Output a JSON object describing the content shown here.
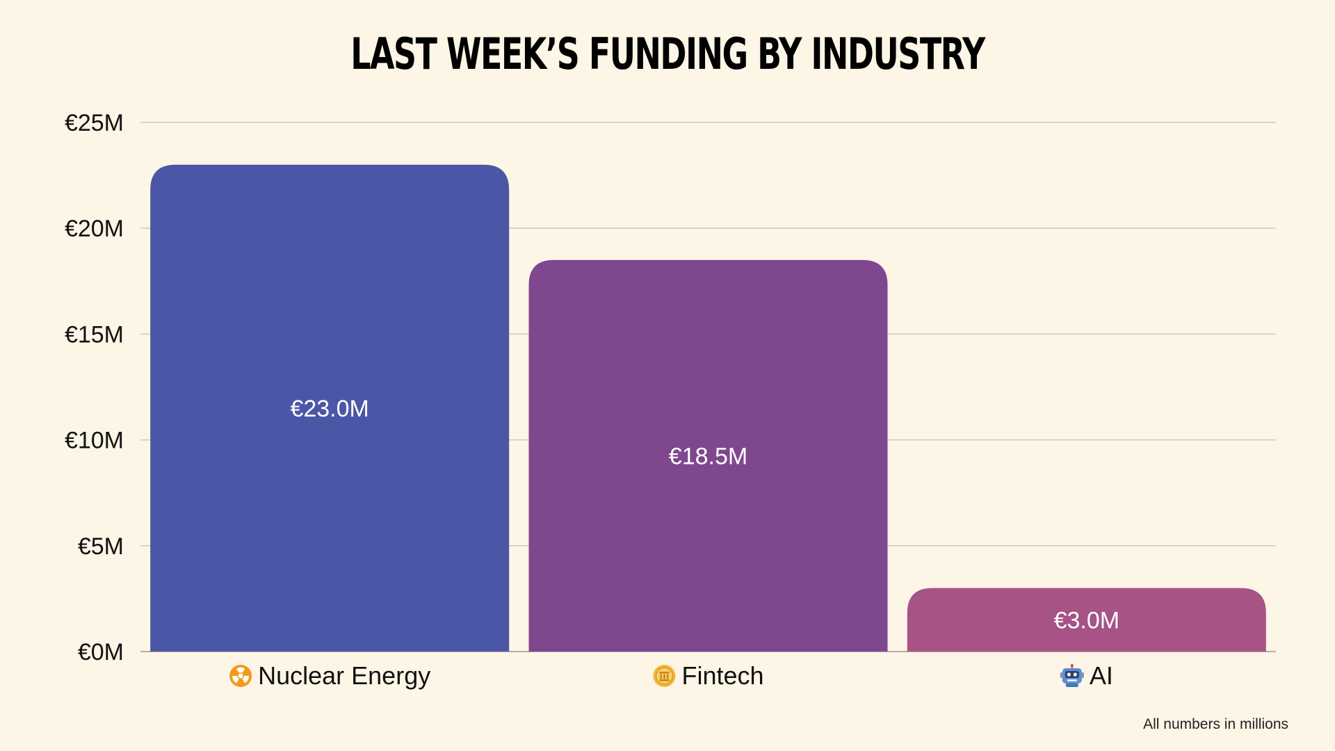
{
  "chart_data": {
    "type": "bar",
    "title": "Last Week’s Funding by Industry",
    "categories": [
      "Nuclear Energy",
      "Fintech",
      "AI"
    ],
    "category_icons": [
      "radioactive-icon",
      "coin-icon",
      "robot-icon"
    ],
    "values": [
      23.0,
      18.5,
      3.0
    ],
    "value_labels": [
      "€23.0M",
      "€18.5M",
      "€3.0M"
    ],
    "colors": [
      "#4b57a6",
      "#7f478e",
      "#a75386"
    ],
    "ylim": [
      0,
      25
    ],
    "yticks": [
      0,
      5,
      10,
      15,
      20,
      25
    ],
    "ytick_labels": [
      "€0M",
      "€5M",
      "€10M",
      "€15M",
      "€20M",
      "€25M"
    ],
    "xlabel": "",
    "ylabel": "",
    "grid": true,
    "legend": false
  },
  "footnote": "All numbers in millions"
}
